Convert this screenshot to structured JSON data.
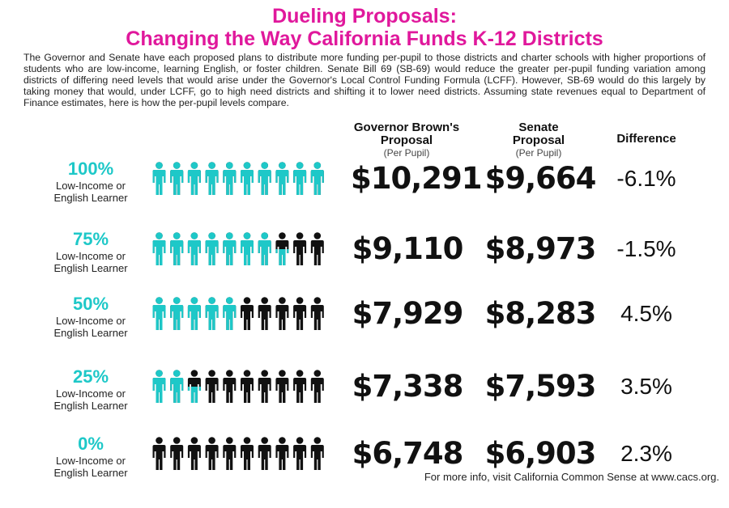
{
  "title_line1": "Dueling Proposals:",
  "title_line2": "Changing the Way California Funds K-12 Districts",
  "intro": "The Governor and Senate have each proposed plans to distribute more funding per-pupil to those districts and charter schools with higher proportions of students who are low-income, learning English, or foster children. Senate Bill 69 (SB-69) would reduce the greater per-pupil funding variation among districts of differing need levels that would arise under the Governor's Local Control Funding Formula (LCFF). However, SB-69 would do this largely by taking money that would, under LCFF, go to high need districts and shifting it to lower need districts. Assuming state revenues equal to Department of Finance estimates, here is how the per-pupil levels compare.",
  "headers": {
    "gov_line1": "Governor Brown's",
    "gov_line2": "Proposal",
    "gov_sub": "(Per Pupil)",
    "sen_line1": "Senate",
    "sen_line2": "Proposal",
    "sen_sub": "(Per Pupil)",
    "diff": "Difference"
  },
  "colors": {
    "title": "#e0189c",
    "highlight": "#1ec8c8",
    "person_dark": "#111111"
  },
  "footer": "For more info, visit California Common Sense at www.cacs.org.",
  "chart_data": {
    "type": "table",
    "icon_total": 10,
    "rows": [
      {
        "pct": "100%",
        "label1": "Low-Income or",
        "label2": "English Learner",
        "share": 1.0,
        "governor": "$10,291",
        "senate": "$9,664",
        "difference": "-6.1%"
      },
      {
        "pct": "75%",
        "label1": "Low-Income or",
        "label2": "English Learner",
        "share": 0.75,
        "governor": "$9,110",
        "senate": "$8,973",
        "difference": "-1.5%"
      },
      {
        "pct": "50%",
        "label1": "Low-Income or",
        "label2": "English Learner",
        "share": 0.5,
        "governor": "$7,929",
        "senate": "$8,283",
        "difference": "4.5%"
      },
      {
        "pct": "25%",
        "label1": "Low-Income or",
        "label2": "English Learner",
        "share": 0.25,
        "governor": "$7,338",
        "senate": "$7,593",
        "difference": "3.5%"
      },
      {
        "pct": "0%",
        "label1": "Low-Income or",
        "label2": "English Learner",
        "share": 0.0,
        "governor": "$6,748",
        "senate": "$6,903",
        "difference": "2.3%"
      }
    ]
  }
}
